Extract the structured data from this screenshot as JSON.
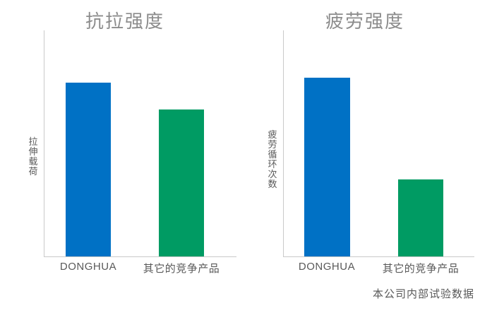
{
  "footnote": "本公司内部试验数据",
  "colors": {
    "bar_blue": "#0071C5",
    "bar_green": "#009B63",
    "axis_line": "#C9C9C9",
    "title_text": "#8C8C8C",
    "label_text": "#595959"
  },
  "chart_data": [
    {
      "type": "bar",
      "title": "抗拉强度",
      "xlabel": "",
      "ylabel": "拉伸载荷",
      "categories": [
        "DONGHUA",
        "其它的竞争产品"
      ],
      "values": [
        77,
        65
      ],
      "ylim": [
        0,
        100
      ],
      "grid": false,
      "legend": "none",
      "axis_numeric_labels": false,
      "bar_colors": [
        "#0071C5",
        "#009B63"
      ]
    },
    {
      "type": "bar",
      "title": "疲劳强度",
      "xlabel": "",
      "ylabel": "疲劳循环次数",
      "categories": [
        "DONGHUA",
        "其它的竞争产品"
      ],
      "values": [
        79,
        34
      ],
      "ylim": [
        0,
        100
      ],
      "grid": false,
      "legend": "none",
      "axis_numeric_labels": false,
      "bar_colors": [
        "#0071C5",
        "#009B63"
      ]
    }
  ]
}
